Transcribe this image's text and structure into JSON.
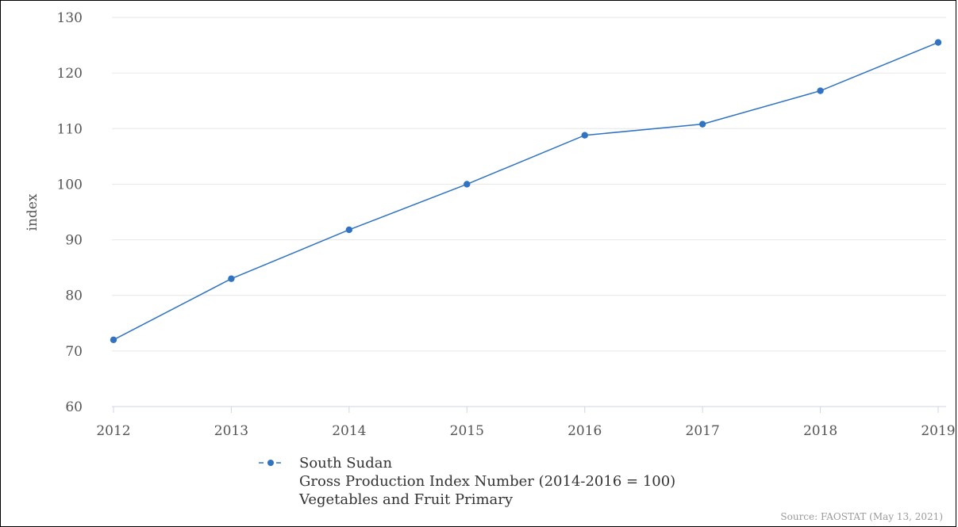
{
  "chart_data": {
    "type": "line",
    "title": "",
    "xlabel": "",
    "ylabel": "index",
    "ylim": [
      60,
      130
    ],
    "yticks": [
      60,
      70,
      80,
      90,
      100,
      110,
      120,
      130
    ],
    "x": [
      "2012",
      "2013",
      "2014",
      "2015",
      "2016",
      "2017",
      "2018",
      "2019"
    ],
    "series": [
      {
        "name": "South Sudan",
        "color": "#2f73c2",
        "values": [
          72,
          83,
          91.8,
          100,
          108.8,
          110.8,
          116.8,
          125.5
        ]
      }
    ],
    "legend": {
      "position": "bottom-left",
      "lines": [
        "South Sudan",
        "Gross Production Index Number (2014-2016 = 100)",
        "Vegetables and Fruit Primary"
      ]
    },
    "grid": true,
    "source": "Source: FAOSTAT (May 13, 2021)"
  }
}
